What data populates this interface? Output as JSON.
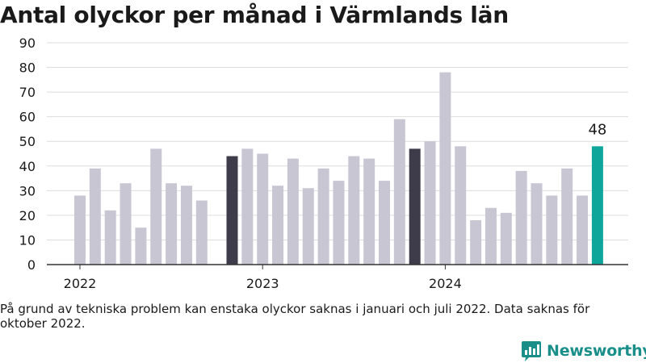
{
  "title": "Antal olyckor per månad i Värmlands län",
  "footnote": "På grund av tekniska problem kan enstaka olyckor saknas i januari och juli 2022. Data saknas för oktober 2022.",
  "brand": {
    "name": "Newsworthy",
    "icon": "newsworthy-logo-icon"
  },
  "colors": {
    "default_bar": "#c8c6d3",
    "dark_bar": "#3e3c4a",
    "highlight_bar": "#0ea59a",
    "grid": "#dddddd",
    "axis": "#333333",
    "brand": "#1a8f8a"
  },
  "chart_data": {
    "type": "bar",
    "x_tick_labels": [
      "2022",
      "2023",
      "2024"
    ],
    "y_ticks": [
      0,
      10,
      20,
      30,
      40,
      50,
      60,
      70,
      80,
      90
    ],
    "ylim": [
      0,
      90
    ],
    "grid": true,
    "annotations": [
      {
        "category": "2024-11",
        "text": "48"
      }
    ],
    "categories": [
      "2022-01",
      "2022-02",
      "2022-03",
      "2022-04",
      "2022-05",
      "2022-06",
      "2022-07",
      "2022-08",
      "2022-09",
      "2022-10",
      "2022-11",
      "2022-12",
      "2023-01",
      "2023-02",
      "2023-03",
      "2023-04",
      "2023-05",
      "2023-06",
      "2023-07",
      "2023-08",
      "2023-09",
      "2023-10",
      "2023-11",
      "2023-12",
      "2024-01",
      "2024-02",
      "2024-03",
      "2024-04",
      "2024-05",
      "2024-06",
      "2024-07",
      "2024-08",
      "2024-09",
      "2024-10",
      "2024-11"
    ],
    "values": [
      28,
      39,
      22,
      33,
      15,
      47,
      33,
      32,
      26,
      null,
      44,
      47,
      45,
      32,
      43,
      31,
      39,
      34,
      44,
      43,
      34,
      59,
      47,
      50,
      78,
      48,
      18,
      23,
      21,
      38,
      33,
      28,
      39,
      28,
      48
    ],
    "bar_colors": [
      "default",
      "default",
      "default",
      "default",
      "default",
      "default",
      "default",
      "default",
      "default",
      "default",
      "dark",
      "default",
      "default",
      "default",
      "default",
      "default",
      "default",
      "default",
      "default",
      "default",
      "default",
      "default",
      "dark",
      "default",
      "default",
      "default",
      "default",
      "default",
      "default",
      "default",
      "default",
      "default",
      "default",
      "default",
      "highlight"
    ]
  }
}
